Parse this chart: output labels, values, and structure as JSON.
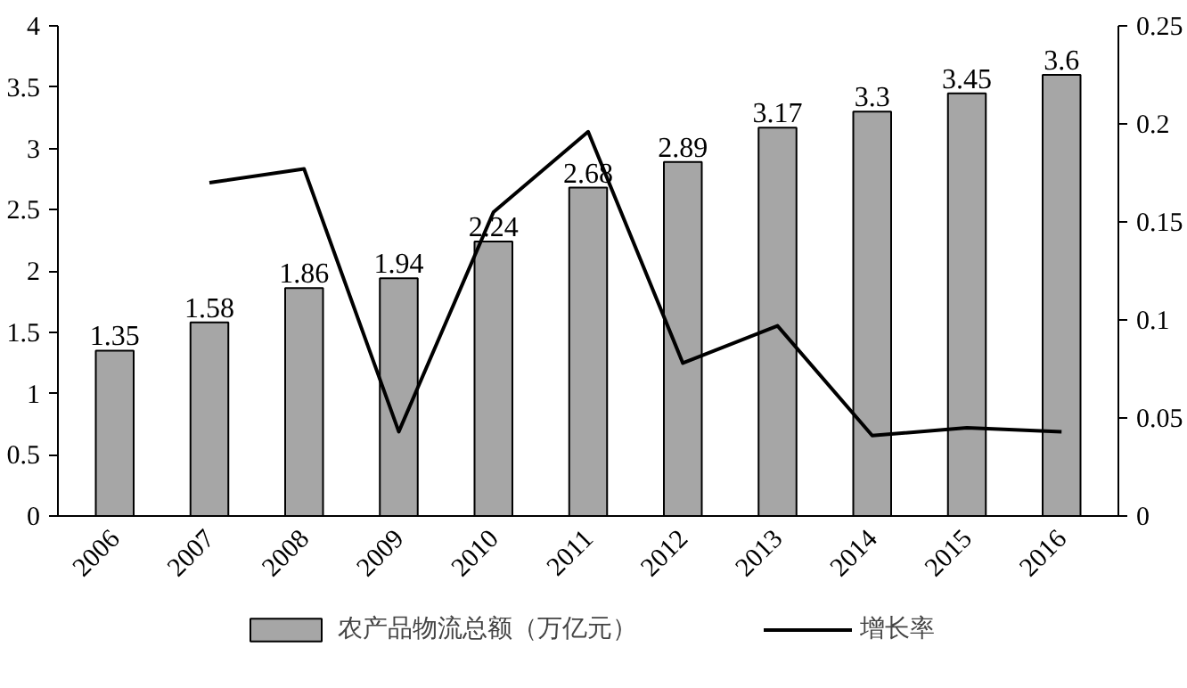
{
  "chart_data": {
    "type": "bar",
    "categories": [
      "2006",
      "2007",
      "2008",
      "2009",
      "2010",
      "2011",
      "2012",
      "2013",
      "2014",
      "2015",
      "2016"
    ],
    "series": [
      {
        "name": "农产品物流总额（万亿元）",
        "color": "#a6a6a6",
        "values": [
          1.35,
          1.58,
          1.86,
          1.94,
          2.24,
          2.68,
          2.89,
          3.17,
          3.3,
          3.45,
          3.6
        ],
        "value_labels": [
          "1.35",
          "1.58",
          "1.86",
          "1.94",
          "2.24",
          "2.68",
          "2.89",
          "3.17",
          "3.3",
          "3.45",
          "3.6"
        ]
      },
      {
        "name": "增长率",
        "type": "line",
        "axis": "y2",
        "color": "#000000",
        "values": [
          null,
          0.17,
          0.177,
          0.043,
          0.155,
          0.196,
          0.078,
          0.097,
          0.041,
          0.045,
          0.043
        ]
      }
    ],
    "ylim": [
      0,
      4
    ],
    "yticks": [
      0,
      0.5,
      1,
      1.5,
      2,
      2.5,
      3,
      3.5,
      4
    ],
    "y2lim": [
      0,
      0.25
    ],
    "y2ticks": [
      0,
      0.05,
      0.1,
      0.15,
      0.2,
      0.25
    ],
    "legend": "bottom",
    "grid": false,
    "marker": "none",
    "line_style": "solid"
  }
}
